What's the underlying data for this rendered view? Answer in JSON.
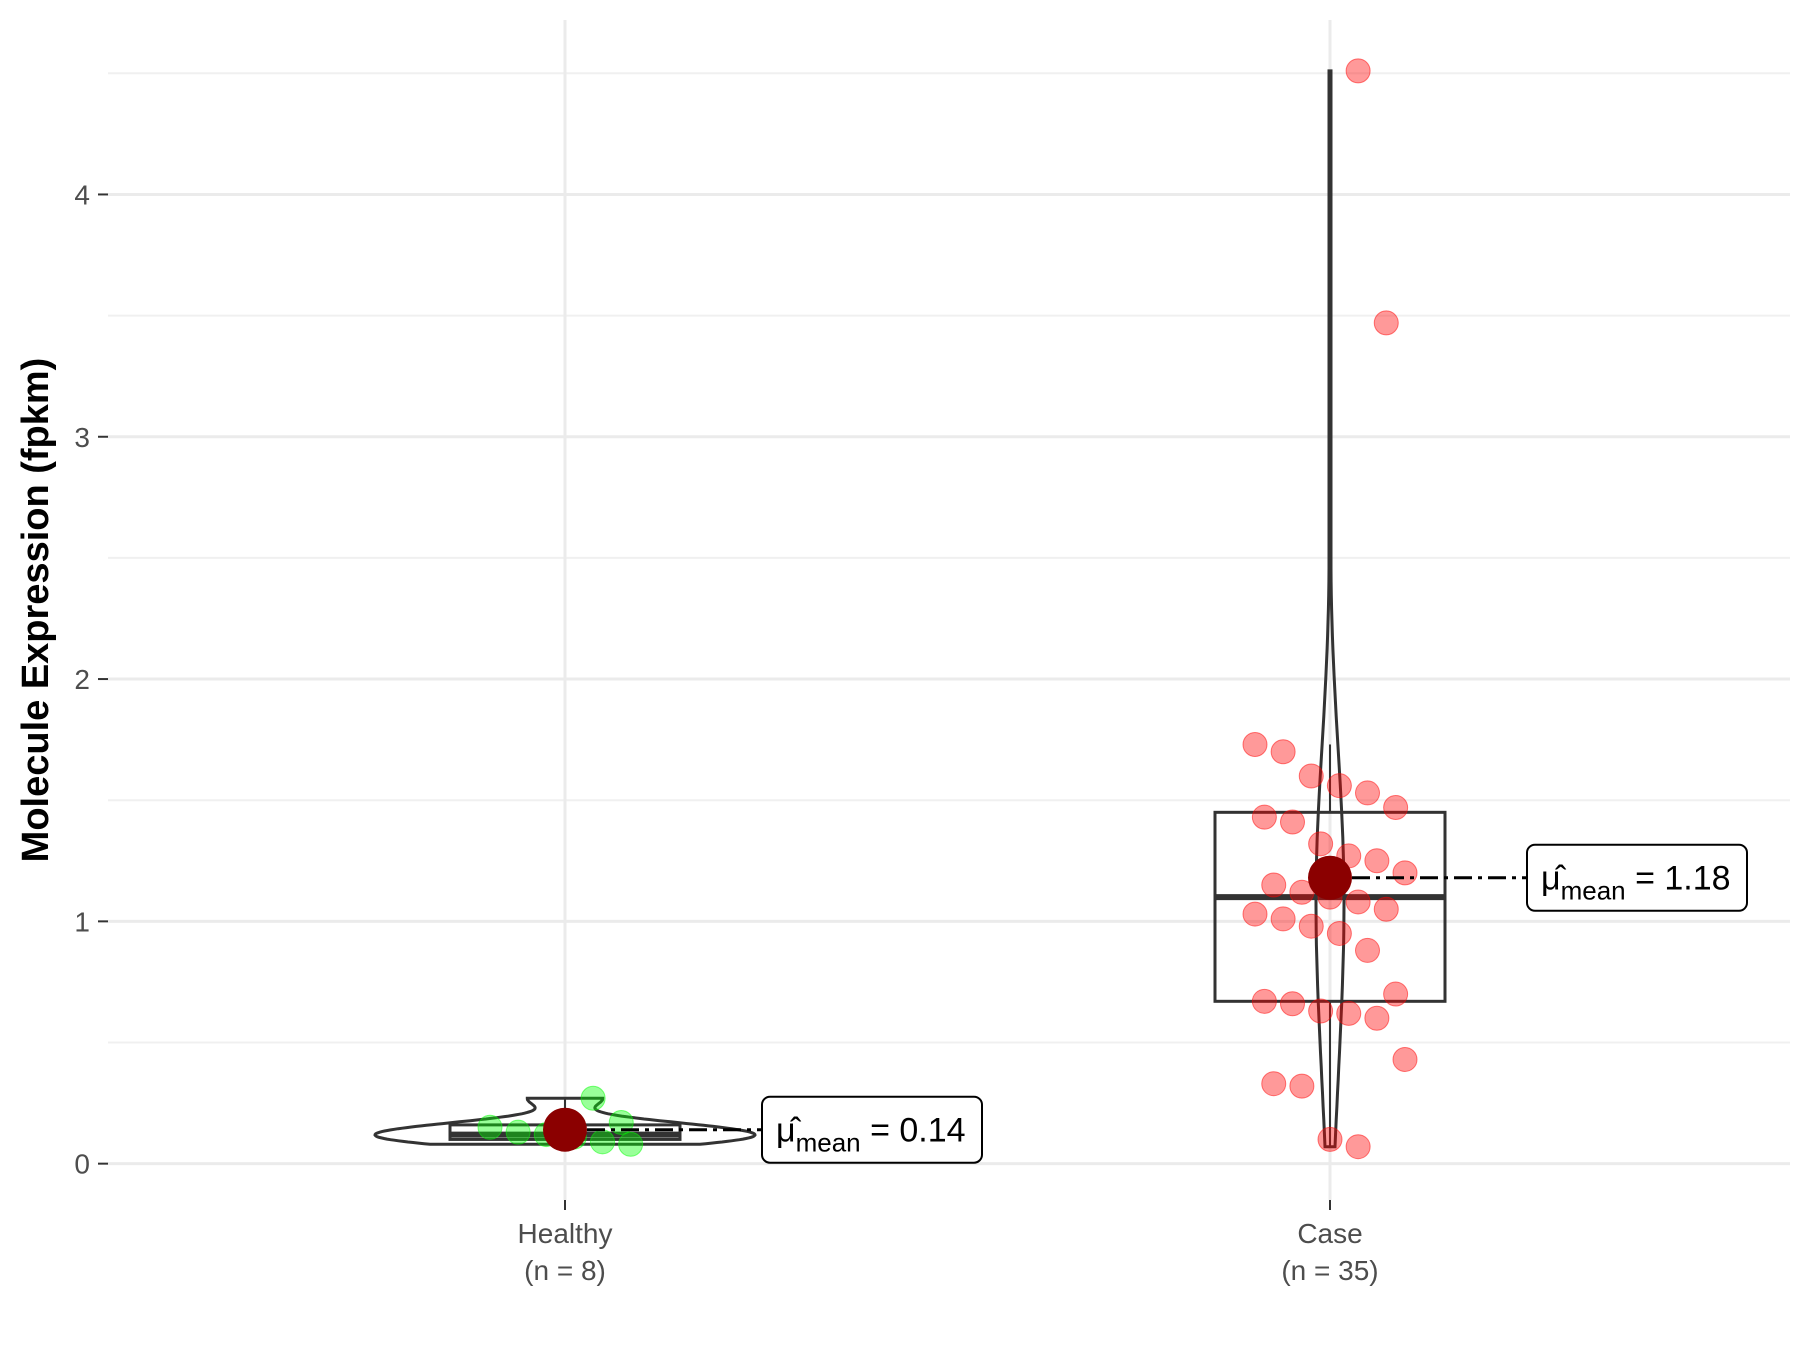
{
  "chart_data": {
    "type": "violin-box-scatter",
    "ylabel": "Molecule Expression (fpkm)",
    "xlabel": "",
    "ylim": [
      -0.15,
      4.72
    ],
    "yticks": [
      0,
      1,
      2,
      3,
      4
    ],
    "y_minor_ticks": [
      0.5,
      1.5,
      2.5,
      3.5,
      4.5
    ],
    "grid": true,
    "groups": [
      {
        "name": "Healthy",
        "n_label": "(n = 8)",
        "color": "#00ff00",
        "mean": 0.14,
        "mean_label": "0.14",
        "box": {
          "q1": 0.1,
          "median": 0.12,
          "q3": 0.16,
          "whisker_low": 0.08,
          "whisker_high": 0.27
        },
        "violin": {
          "ymin": 0.08,
          "ymax": 0.27
        },
        "points": [
          0.27,
          0.17,
          0.15,
          0.13,
          0.12,
          0.11,
          0.09,
          0.08
        ]
      },
      {
        "name": "Case",
        "n_label": "(n = 35)",
        "color": "#ff0000",
        "mean": 1.18,
        "mean_label": "1.18",
        "box": {
          "q1": 0.67,
          "median": 1.1,
          "q3": 1.45,
          "whisker_low": 0.07,
          "whisker_high": 1.73
        },
        "violin": {
          "ymin": 0.07,
          "ymax": 4.51
        },
        "points": [
          4.51,
          3.47,
          1.73,
          1.7,
          1.6,
          1.56,
          1.53,
          1.47,
          1.43,
          1.41,
          1.32,
          1.27,
          1.25,
          1.2,
          1.15,
          1.12,
          1.1,
          1.08,
          1.05,
          1.03,
          1.01,
          0.98,
          0.95,
          0.88,
          0.7,
          0.67,
          0.66,
          0.63,
          0.62,
          0.6,
          0.43,
          0.33,
          0.32,
          0.1,
          0.07
        ]
      }
    ],
    "mean_point_color": "#8b0000"
  }
}
